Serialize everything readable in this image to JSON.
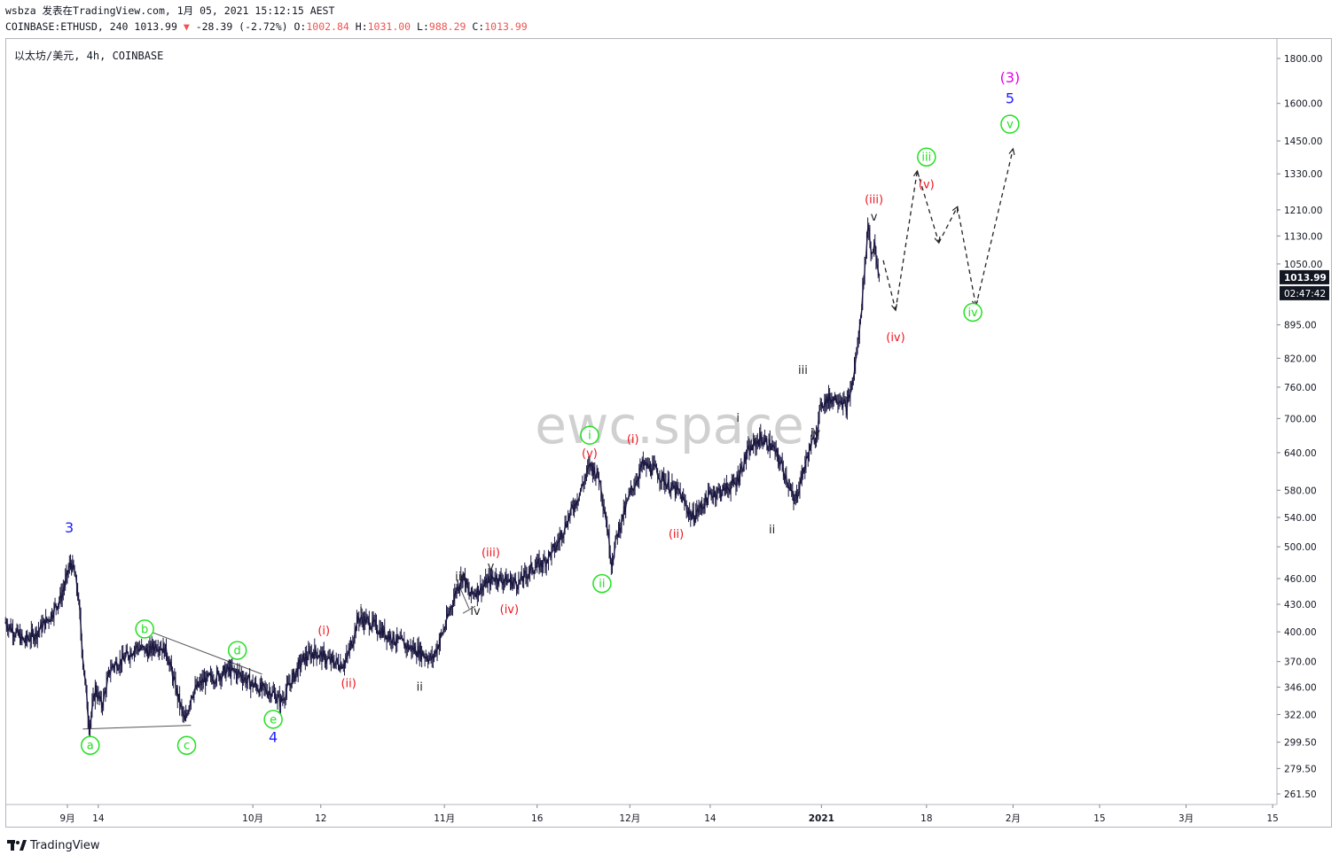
{
  "header": {
    "line1": "wsbza 发表在TradingView.com, 1月 05, 2021 15:12:15 AEST",
    "symbol_tf": "COINBASE:ETHUSD, 240",
    "last": "1013.99",
    "arrow": "▼",
    "change": "-28.39 (-2.72%)",
    "o_label": "O:",
    "o_val": "1002.84",
    "h_label": "H:",
    "h_val": "1031.00",
    "l_label": "L:",
    "l_val": "988.29",
    "c_label": "C:",
    "c_val": "1013.99"
  },
  "chart_title": "以太坊/美元, 4h, COINBASE",
  "watermark": "ewc.space",
  "footer": {
    "brand": "TradingView"
  },
  "colors": {
    "candles": "#1a1740",
    "red": "#f0141e",
    "green": "#22e022",
    "blue": "#1e1eff",
    "magenta": "#e600e6",
    "black": "#222222",
    "trendline": "#555555",
    "price_tag_bg": "#131722"
  },
  "chart_data": {
    "type": "candlestick",
    "scale": "log",
    "y_ticks": [
      1800,
      1600,
      1450,
      1330,
      1210,
      1130,
      1050,
      895,
      820,
      760,
      700,
      640,
      580,
      540,
      500,
      460,
      430,
      400,
      370,
      346,
      322,
      299.5,
      279.5,
      261.5
    ],
    "y_tick_labels": [
      "1800.00",
      "1600.00",
      "1450.00",
      "1330.00",
      "1210.00",
      "1130.00",
      "1050.00",
      "895.00",
      "820.00",
      "760.00",
      "700.00",
      "640.00",
      "580.00",
      "540.00",
      "500.00",
      "460.00",
      "430.00",
      "400.00",
      "370.00",
      "346.00",
      "322.00",
      "299.50",
      "279.50",
      "261.50"
    ],
    "x_ticks": [
      {
        "d": 0,
        "label": "9月"
      },
      {
        "d": 5,
        "label": "14"
      },
      {
        "d": 30,
        "label": "10月"
      },
      {
        "d": 41,
        "label": "12"
      },
      {
        "d": 61,
        "label": "11月"
      },
      {
        "d": 76,
        "label": "16"
      },
      {
        "d": 91,
        "label": "12月"
      },
      {
        "d": 104,
        "label": "14"
      },
      {
        "d": 122,
        "label": "2021"
      },
      {
        "d": 139,
        "label": "18"
      },
      {
        "d": 153,
        "label": "2月"
      },
      {
        "d": 167,
        "label": "15"
      },
      {
        "d": 181,
        "label": "3月"
      },
      {
        "d": 195,
        "label": "15"
      }
    ],
    "last_price": "1013.99",
    "countdown": "02:47:42",
    "price_path": [
      [
        -10,
        410
      ],
      [
        -7,
        390
      ],
      [
        -5,
        400
      ],
      [
        -3,
        415
      ],
      [
        -1,
        440
      ],
      [
        0.5,
        480
      ],
      [
        1,
        470
      ],
      [
        1.7,
        440
      ],
      [
        2.5,
        370
      ],
      [
        3.5,
        312
      ],
      [
        4.5,
        345
      ],
      [
        5.5,
        330
      ],
      [
        7,
        365
      ],
      [
        9,
        372
      ],
      [
        11,
        385
      ],
      [
        13,
        380
      ],
      [
        14.5,
        388
      ],
      [
        16,
        380
      ],
      [
        17.5,
        345
      ],
      [
        19,
        315
      ],
      [
        20,
        340
      ],
      [
        22,
        352
      ],
      [
        24,
        356
      ],
      [
        26,
        362
      ],
      [
        28,
        358
      ],
      [
        29,
        352
      ],
      [
        31,
        345
      ],
      [
        33,
        342
      ],
      [
        34.5,
        333
      ],
      [
        36,
        350
      ],
      [
        38,
        372
      ],
      [
        40,
        380
      ],
      [
        42,
        372
      ],
      [
        44,
        368
      ],
      [
        45,
        370
      ],
      [
        46,
        390
      ],
      [
        47,
        415
      ],
      [
        49,
        410
      ],
      [
        51,
        400
      ],
      [
        53,
        392
      ],
      [
        55,
        385
      ],
      [
        57,
        380
      ],
      [
        59,
        372
      ],
      [
        61,
        405
      ],
      [
        63,
        450
      ],
      [
        64,
        465
      ],
      [
        65,
        440
      ],
      [
        67,
        450
      ],
      [
        69,
        462
      ],
      [
        71,
        458
      ],
      [
        73,
        455
      ],
      [
        75,
        472
      ],
      [
        77,
        480
      ],
      [
        79,
        500
      ],
      [
        81,
        540
      ],
      [
        83,
        580
      ],
      [
        84.5,
        620
      ],
      [
        86,
        600
      ],
      [
        87,
        545
      ],
      [
        88,
        480
      ],
      [
        89,
        520
      ],
      [
        91,
        575
      ],
      [
        93,
        620
      ],
      [
        95,
        612
      ],
      [
        97,
        590
      ],
      [
        99,
        575
      ],
      [
        101,
        540
      ],
      [
        102.5,
        555
      ],
      [
        104,
        575
      ],
      [
        106,
        580
      ],
      [
        108,
        590
      ],
      [
        110,
        640
      ],
      [
        112,
        665
      ],
      [
        114,
        650
      ],
      [
        115.5,
        620
      ],
      [
        116.5,
        595
      ],
      [
        117.5,
        560
      ],
      [
        119,
        610
      ],
      [
        120,
        645
      ],
      [
        121,
        670
      ],
      [
        122,
        730
      ],
      [
        123,
        735
      ],
      [
        124,
        740
      ],
      [
        125,
        740
      ],
      [
        126,
        720
      ],
      [
        127,
        770
      ],
      [
        128,
        870
      ],
      [
        129,
        1050
      ],
      [
        129.5,
        1170
      ],
      [
        130,
        1080
      ],
      [
        130.5,
        1110
      ],
      [
        131,
        1030
      ],
      [
        131.5,
        1013.99
      ]
    ],
    "projection": [
      [
        132,
        1060
      ],
      [
        134,
        930
      ],
      [
        137.5,
        1340
      ],
      [
        141,
        1110
      ],
      [
        144,
        1220
      ],
      [
        147,
        940
      ],
      [
        153,
        1420
      ]
    ],
    "wave_labels": [
      {
        "text": "3",
        "d": 0.3,
        "p": 525,
        "color": "blue"
      },
      {
        "text": "a",
        "d": 3.7,
        "p": 297,
        "color": "green",
        "circle": true
      },
      {
        "text": "b",
        "d": 12.5,
        "p": 403,
        "color": "green",
        "circle": true
      },
      {
        "text": "c",
        "d": 19.3,
        "p": 297,
        "color": "green",
        "circle": true
      },
      {
        "text": "d",
        "d": 27.5,
        "p": 381,
        "color": "green",
        "circle": true
      },
      {
        "text": "e",
        "d": 33.3,
        "p": 318,
        "color": "green",
        "circle": true
      },
      {
        "text": "4",
        "d": 33.3,
        "p": 303,
        "color": "blue"
      },
      {
        "text": "(i)",
        "d": 41.5,
        "p": 402,
        "color": "red"
      },
      {
        "text": "(ii)",
        "d": 45.5,
        "p": 350,
        "color": "red"
      },
      {
        "text": "i",
        "d": 47.5,
        "p": 425,
        "color": "black"
      },
      {
        "text": "ii",
        "d": 57,
        "p": 347,
        "color": "black"
      },
      {
        "text": "iii",
        "d": 63.5,
        "p": 463,
        "color": "black"
      },
      {
        "text": "iv",
        "d": 66,
        "p": 423,
        "color": "black"
      },
      {
        "text": "(iii)",
        "d": 68.5,
        "p": 493,
        "color": "red"
      },
      {
        "text": "v",
        "d": 68.5,
        "p": 476,
        "color": "black"
      },
      {
        "text": "(iv)",
        "d": 71.5,
        "p": 425,
        "color": "red"
      },
      {
        "text": "i",
        "d": 84.5,
        "p": 670,
        "color": "green",
        "circle": true
      },
      {
        "text": "(v)",
        "d": 84.5,
        "p": 640,
        "color": "red"
      },
      {
        "text": "ii",
        "d": 86.5,
        "p": 454,
        "color": "green",
        "circle": true
      },
      {
        "text": "(i)",
        "d": 91.5,
        "p": 664,
        "color": "red"
      },
      {
        "text": "(ii)",
        "d": 98.5,
        "p": 518,
        "color": "red"
      },
      {
        "text": "i",
        "d": 108.5,
        "p": 702,
        "color": "black"
      },
      {
        "text": "ii",
        "d": 114,
        "p": 524,
        "color": "black"
      },
      {
        "text": "iii",
        "d": 119,
        "p": 796,
        "color": "black"
      },
      {
        "text": "iv",
        "d": 121,
        "p": 675,
        "color": "black"
      },
      {
        "text": "(iii)",
        "d": 130.5,
        "p": 1245,
        "color": "red"
      },
      {
        "text": "v",
        "d": 130.5,
        "p": 1190,
        "color": "black"
      },
      {
        "text": "(iv)",
        "d": 134,
        "p": 868,
        "color": "red"
      },
      {
        "text": "iii",
        "d": 139,
        "p": 1390,
        "color": "green",
        "circle": true
      },
      {
        "text": "(v)",
        "d": 139,
        "p": 1295,
        "color": "red"
      },
      {
        "text": "iv",
        "d": 146.5,
        "p": 925,
        "color": "green",
        "circle": true
      },
      {
        "text": "(3)",
        "d": 152.5,
        "p": 1710,
        "color": "magenta"
      },
      {
        "text": "5",
        "d": 152.5,
        "p": 1620,
        "color": "blue"
      },
      {
        "text": "v",
        "d": 152.5,
        "p": 1515,
        "color": "green",
        "circle": true
      }
    ],
    "trendlines": [
      {
        "from": [
          2.5,
          310
        ],
        "to": [
          20,
          313
        ]
      },
      {
        "from": [
          11.5,
          405
        ],
        "to": [
          31.5,
          358
        ]
      },
      {
        "from": [
          65,
          425
        ],
        "to": [
          63,
          458
        ]
      },
      {
        "from": [
          64,
          420
        ],
        "to": [
          66,
          428
        ]
      }
    ]
  }
}
